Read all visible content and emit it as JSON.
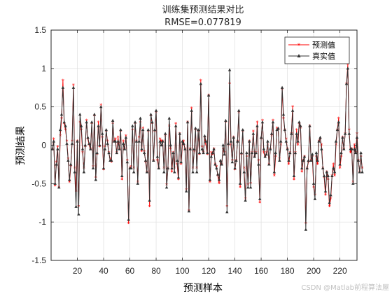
{
  "chart_data": {
    "type": "line",
    "title": "训练集预测结果对比",
    "subtitle": "RMSE=0.077819",
    "xlabel": "预测样本",
    "ylabel": "预测结果",
    "xlim": [
      0,
      233
    ],
    "ylim": [
      -1.5,
      1.5
    ],
    "xticks": [
      20,
      40,
      60,
      80,
      100,
      120,
      140,
      160,
      180,
      200,
      220
    ],
    "yticks": [
      -1.5,
      -1,
      -0.5,
      0,
      0.5,
      1,
      1.5
    ],
    "grid": true,
    "legend_position": "top-right",
    "series": [
      {
        "name": "预测值",
        "color": "#ff0000",
        "marker": "star",
        "values": [
          -0.06,
          0.08,
          -0.53,
          -0.22,
          -0.02,
          -0.55,
          0.12,
          0.35,
          0.84,
          0.28,
          0.2,
          0.05,
          -0.18,
          -0.48,
          -0.28,
          0.05,
          0.78,
          -0.3,
          -0.6,
          0.05,
          -0.8,
          0.3,
          0.2,
          -0.1,
          -0.3,
          -0.02,
          0.32,
          0.08,
          0.0,
          -0.05,
          0.28,
          -0.28,
          0.38,
          -0.42,
          -0.12,
          0.3,
          -0.02,
          0.52,
          0.1,
          -0.32,
          -0.02,
          0.18,
          0.05,
          -0.1,
          -0.18,
          -0.22,
          0.28,
          0.05,
          0.08,
          -0.1,
          0.1,
          -0.05,
          0.18,
          -0.45,
          0.05,
          -0.05,
          0.12,
          -0.2,
          -1.02,
          -0.3,
          -0.28,
          0.2,
          -0.3,
          0.28,
          0.05,
          -0.48,
          0.1,
          0.3,
          -0.08,
          0.22,
          -0.08,
          -0.22,
          -0.35,
          0.18,
          -0.8,
          0.38,
          0.28,
          -0.2,
          0.18,
          0.42,
          -0.2,
          -0.3,
          0.08,
          0.05,
          0.05,
          -0.3,
          0.12,
          -0.52,
          -0.3,
          0.25,
          -0.05,
          -0.35,
          -0.1,
          -0.3,
          0.28,
          -0.25,
          -0.45,
          0.15,
          -0.25,
          0.0,
          0.05,
          -0.05,
          -0.58,
          0.3,
          -0.85,
          -0.05,
          0.48,
          -0.3,
          -0.08,
          0.2,
          -0.3,
          0.18,
          -0.12,
          0.84,
          -0.02,
          -0.1,
          0.1,
          0.0,
          -0.12,
          0.65,
          -0.48,
          -0.1,
          -0.12,
          -0.05,
          -0.25,
          -0.28,
          -0.4,
          -0.5,
          -0.22,
          -0.25,
          -0.05,
          -0.1,
          0.3,
          -0.8,
          0.0,
          0.8,
          0.0,
          -0.2,
          0.1,
          -0.32,
          -0.2,
          0.05,
          0.42,
          -0.55,
          -0.12,
          0.18,
          -0.3,
          -0.7,
          -0.15,
          -0.52,
          0.05,
          -0.5,
          -0.1,
          0.18,
          -0.15,
          -0.1,
          0.3,
          -0.2,
          -0.75,
          0.08,
          0.32,
          -0.1,
          -0.15,
          -0.1,
          0.0,
          -0.25,
          -0.05,
          0.12,
          0.32,
          -0.4,
          -0.15,
          0.22,
          0.2,
          -0.18,
          0.0,
          0.72,
          0.35,
          0.2,
          0.08,
          -0.05,
          -0.25,
          -0.1,
          0.15,
          0.5,
          -0.45,
          -0.1,
          0.2,
          0.0,
          0.28,
          0.22,
          -0.35,
          -0.2,
          -0.15,
          -1.02,
          -0.3,
          -0.22,
          0.25,
          -0.2,
          -0.15,
          -0.55,
          -0.65,
          -0.15,
          -0.25,
          0.05,
          0.08,
          0.0,
          -0.3,
          -0.42,
          -0.65,
          -0.35,
          -0.45,
          -0.8,
          -0.7,
          -0.4,
          -0.25,
          -0.4,
          0.0,
          0.2,
          0.35,
          -0.3,
          -0.15,
          0.1,
          -0.05,
          0.15,
          0.8,
          1.05,
          0.2,
          -0.1,
          -0.05,
          -0.48,
          0.0,
          -0.1,
          0.15,
          -0.2,
          -0.35,
          -0.15,
          -0.3
        ]
      },
      {
        "name": "真实值",
        "color": "#333333",
        "marker": "triangle",
        "values": [
          -0.05,
          0.05,
          -0.5,
          -0.25,
          -0.05,
          -0.55,
          0.2,
          0.4,
          0.75,
          0.3,
          0.25,
          0.02,
          -0.2,
          -0.45,
          -0.25,
          0.02,
          0.75,
          -0.35,
          -0.8,
          0.05,
          -0.9,
          0.4,
          0.25,
          -0.05,
          -0.35,
          0.0,
          0.3,
          0.1,
          0.02,
          -0.05,
          0.3,
          -0.3,
          0.4,
          -0.45,
          -0.1,
          0.25,
          0.0,
          0.5,
          0.15,
          -0.3,
          -0.05,
          0.2,
          0.02,
          -0.1,
          -0.2,
          -0.2,
          0.32,
          0.05,
          0.05,
          -0.1,
          0.05,
          -0.05,
          0.2,
          -0.4,
          0.02,
          -0.05,
          0.1,
          -0.22,
          -0.97,
          -0.3,
          -0.3,
          0.25,
          -0.35,
          0.3,
          0.05,
          -0.5,
          0.05,
          0.35,
          -0.05,
          0.2,
          -0.1,
          -0.2,
          -0.35,
          0.2,
          -0.72,
          0.4,
          0.3,
          -0.2,
          0.2,
          0.45,
          -0.15,
          -0.3,
          0.05,
          0.0,
          0.05,
          -0.35,
          0.15,
          -0.55,
          -0.3,
          0.35,
          0.0,
          -0.3,
          -0.1,
          -0.35,
          0.25,
          -0.2,
          -0.42,
          0.15,
          -0.22,
          0.05,
          0.02,
          -0.05,
          -0.6,
          0.3,
          -0.86,
          -0.05,
          0.45,
          -0.35,
          -0.05,
          0.22,
          -0.35,
          0.2,
          -0.1,
          0.8,
          -0.05,
          -0.1,
          0.12,
          0.05,
          -0.1,
          0.65,
          -0.45,
          -0.15,
          -0.1,
          -0.05,
          -0.25,
          -0.3,
          -0.38,
          -0.45,
          -0.2,
          -0.25,
          0.0,
          -0.12,
          0.32,
          -0.87,
          0.02,
          0.98,
          0.05,
          -0.22,
          0.1,
          -0.3,
          -0.2,
          0.05,
          0.45,
          -0.5,
          -0.1,
          0.2,
          -0.35,
          -0.72,
          -0.1,
          -0.55,
          0.05,
          -0.55,
          -0.1,
          0.15,
          -0.15,
          -0.1,
          0.25,
          -0.25,
          -0.7,
          0.1,
          0.3,
          -0.05,
          -0.15,
          -0.12,
          0.05,
          -0.25,
          -0.05,
          0.15,
          0.3,
          -0.35,
          -0.1,
          0.2,
          0.22,
          -0.2,
          0.05,
          0.75,
          0.4,
          0.2,
          0.05,
          -0.05,
          -0.2,
          -0.1,
          0.15,
          0.45,
          -0.4,
          -0.1,
          0.15,
          0.05,
          0.3,
          0.25,
          -0.3,
          -0.2,
          -0.15,
          -1.1,
          -0.3,
          -0.2,
          0.25,
          -0.2,
          -0.12,
          -0.5,
          -0.7,
          -0.1,
          -0.2,
          0.05,
          0.1,
          -0.05,
          -0.3,
          -0.4,
          -0.6,
          -0.35,
          -0.4,
          -0.75,
          -0.65,
          -0.4,
          -0.3,
          -0.35,
          0.05,
          0.2,
          0.3,
          -0.25,
          -0.1,
          0.1,
          -0.05,
          0.15,
          0.8,
          1.0,
          0.15,
          -0.05,
          -0.05,
          -0.5,
          -0.05,
          -0.1,
          0.1,
          -0.2,
          -0.35,
          -0.1,
          -0.35
        ]
      }
    ]
  },
  "watermark": "CSDN @Matlab前程算法屋"
}
